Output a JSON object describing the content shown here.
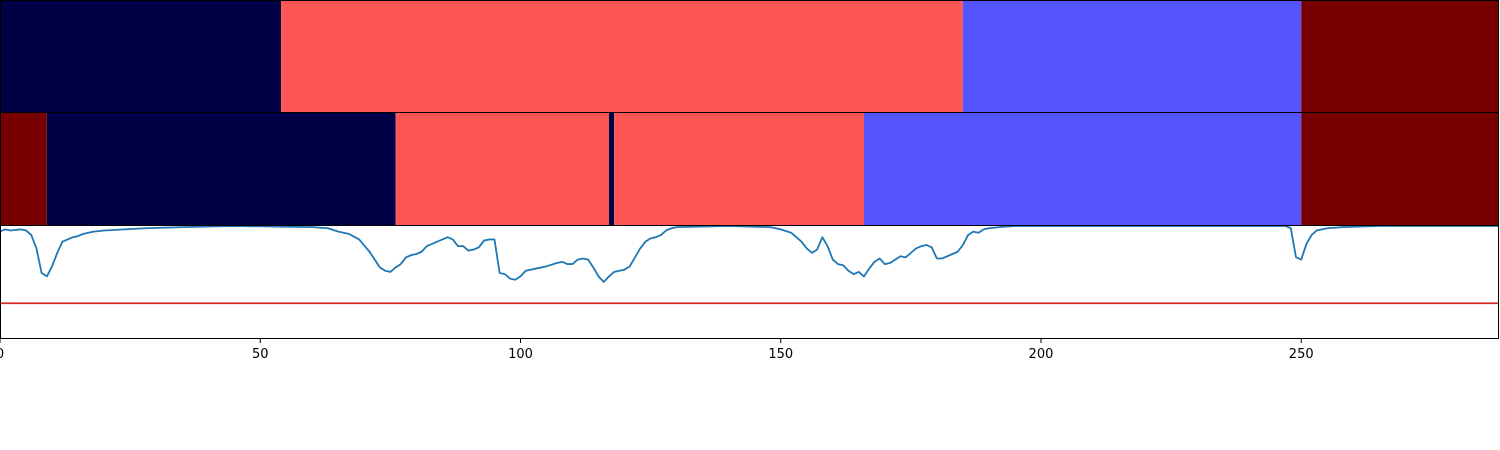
{
  "chart_data": {
    "type": "segmentation_timeline",
    "xlim": [
      0,
      288
    ],
    "x_ticks": [
      0,
      50,
      100,
      150,
      200,
      250
    ],
    "x_tick_labels": [
      "0",
      "50",
      "100",
      "150",
      "200",
      "250"
    ],
    "title": "",
    "xlabel": "",
    "ylabel": "",
    "grid": false,
    "colors": {
      "navy": "#000046",
      "red": "#ff5555",
      "blue": "#5555ff",
      "maroon": "#780000",
      "line": "#1f77b4",
      "threshold": "#d62728"
    },
    "tracks": [
      {
        "segments": [
          {
            "start": 0,
            "end": 54,
            "color": "#000046"
          },
          {
            "start": 54,
            "end": 185,
            "color": "#ff5555"
          },
          {
            "start": 185,
            "end": 250,
            "color": "#5555ff"
          },
          {
            "start": 250,
            "end": 288,
            "color": "#780000"
          }
        ]
      },
      {
        "segments": [
          {
            "start": 0,
            "end": 9,
            "color": "#780000"
          },
          {
            "start": 9,
            "end": 76,
            "color": "#000046"
          },
          {
            "start": 76,
            "end": 117,
            "color": "#ff5555"
          },
          {
            "start": 117,
            "end": 118,
            "color": "#000046"
          },
          {
            "start": 118,
            "end": 166,
            "color": "#ff5555"
          },
          {
            "start": 166,
            "end": 250,
            "color": "#5555ff"
          },
          {
            "start": 250,
            "end": 288,
            "color": "#780000"
          }
        ]
      }
    ],
    "line_panel": {
      "ylim": [
        0,
        1
      ],
      "threshold": 0.31,
      "series_points": [
        [
          0,
          0.95
        ],
        [
          1,
          0.97
        ],
        [
          2,
          0.96
        ],
        [
          4,
          0.97
        ],
        [
          5,
          0.96
        ],
        [
          6,
          0.92
        ],
        [
          7,
          0.8
        ],
        [
          8,
          0.58
        ],
        [
          9,
          0.55
        ],
        [
          10,
          0.64
        ],
        [
          11,
          0.76
        ],
        [
          12,
          0.86
        ],
        [
          13,
          0.88
        ],
        [
          14,
          0.9
        ],
        [
          15,
          0.91
        ],
        [
          16,
          0.93
        ],
        [
          18,
          0.95
        ],
        [
          20,
          0.96
        ],
        [
          24,
          0.97
        ],
        [
          28,
          0.98
        ],
        [
          35,
          0.99
        ],
        [
          45,
          1.0
        ],
        [
          60,
          0.99
        ],
        [
          63,
          0.98
        ],
        [
          65,
          0.95
        ],
        [
          67,
          0.93
        ],
        [
          69,
          0.88
        ],
        [
          71,
          0.77
        ],
        [
          72,
          0.7
        ],
        [
          73,
          0.63
        ],
        [
          74,
          0.6
        ],
        [
          75,
          0.59
        ],
        [
          76,
          0.63
        ],
        [
          77,
          0.66
        ],
        [
          78,
          0.72
        ],
        [
          79,
          0.74
        ],
        [
          80,
          0.75
        ],
        [
          81,
          0.77
        ],
        [
          82,
          0.82
        ],
        [
          83,
          0.84
        ],
        [
          84,
          0.86
        ],
        [
          85,
          0.88
        ],
        [
          86,
          0.9
        ],
        [
          87,
          0.88
        ],
        [
          88,
          0.82
        ],
        [
          89,
          0.82
        ],
        [
          90,
          0.78
        ],
        [
          91,
          0.79
        ],
        [
          92,
          0.81
        ],
        [
          93,
          0.87
        ],
        [
          94,
          0.88
        ],
        [
          95,
          0.88
        ],
        [
          96,
          0.58
        ],
        [
          97,
          0.57
        ],
        [
          98,
          0.53
        ],
        [
          99,
          0.52
        ],
        [
          100,
          0.55
        ],
        [
          101,
          0.6
        ],
        [
          103,
          0.62
        ],
        [
          105,
          0.64
        ],
        [
          107,
          0.67
        ],
        [
          108,
          0.68
        ],
        [
          109,
          0.66
        ],
        [
          110,
          0.66
        ],
        [
          111,
          0.7
        ],
        [
          112,
          0.71
        ],
        [
          113,
          0.7
        ],
        [
          114,
          0.63
        ],
        [
          115,
          0.55
        ],
        [
          116,
          0.5
        ],
        [
          117,
          0.55
        ],
        [
          118,
          0.59
        ],
        [
          119,
          0.6
        ],
        [
          120,
          0.61
        ],
        [
          121,
          0.64
        ],
        [
          122,
          0.72
        ],
        [
          123,
          0.8
        ],
        [
          124,
          0.86
        ],
        [
          125,
          0.89
        ],
        [
          126,
          0.9
        ],
        [
          127,
          0.92
        ],
        [
          128,
          0.96
        ],
        [
          129,
          0.98
        ],
        [
          130,
          0.99
        ],
        [
          140,
          1.0
        ],
        [
          148,
          0.99
        ],
        [
          150,
          0.97
        ],
        [
          152,
          0.94
        ],
        [
          153,
          0.9
        ],
        [
          154,
          0.86
        ],
        [
          155,
          0.8
        ],
        [
          156,
          0.76
        ],
        [
          157,
          0.79
        ],
        [
          158,
          0.9
        ],
        [
          159,
          0.82
        ],
        [
          160,
          0.7
        ],
        [
          161,
          0.66
        ],
        [
          162,
          0.65
        ],
        [
          163,
          0.6
        ],
        [
          164,
          0.57
        ],
        [
          165,
          0.59
        ],
        [
          166,
          0.55
        ],
        [
          167,
          0.62
        ],
        [
          168,
          0.68
        ],
        [
          169,
          0.71
        ],
        [
          170,
          0.66
        ],
        [
          171,
          0.67
        ],
        [
          172,
          0.7
        ],
        [
          173,
          0.73
        ],
        [
          174,
          0.72
        ],
        [
          175,
          0.76
        ],
        [
          176,
          0.8
        ],
        [
          177,
          0.82
        ],
        [
          178,
          0.83
        ],
        [
          179,
          0.81
        ],
        [
          180,
          0.71
        ],
        [
          181,
          0.71
        ],
        [
          182,
          0.73
        ],
        [
          183,
          0.75
        ],
        [
          184,
          0.77
        ],
        [
          185,
          0.83
        ],
        [
          186,
          0.92
        ],
        [
          187,
          0.95
        ],
        [
          188,
          0.94
        ],
        [
          189,
          0.97
        ],
        [
          190,
          0.98
        ],
        [
          192,
          0.99
        ],
        [
          195,
          1.0
        ],
        [
          240,
          1.0
        ],
        [
          247,
          1.0
        ],
        [
          248,
          0.98
        ],
        [
          249,
          0.72
        ],
        [
          250,
          0.7
        ],
        [
          251,
          0.84
        ],
        [
          252,
          0.92
        ],
        [
          253,
          0.96
        ],
        [
          255,
          0.98
        ],
        [
          258,
          0.99
        ],
        [
          265,
          1.0
        ],
        [
          288,
          1.0
        ]
      ]
    }
  }
}
